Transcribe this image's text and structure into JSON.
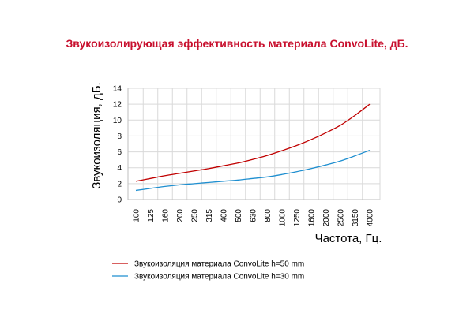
{
  "chart_data": {
    "type": "line",
    "title": "Звукоизолирующая эффективность материала ConvoLite, дБ.",
    "xlabel": "Частота, Гц.",
    "ylabel": "Звукоизоляция, дБ.",
    "categories": [
      "100",
      "125",
      "160",
      "200",
      "250",
      "315",
      "400",
      "500",
      "630",
      "800",
      "1000",
      "1250",
      "1600",
      "2000",
      "2500",
      "3150",
      "4000"
    ],
    "ylim": [
      0,
      14
    ],
    "yticks": [
      0,
      2,
      4,
      6,
      8,
      10,
      12,
      14
    ],
    "grid": true,
    "legend_position": "bottom",
    "series": [
      {
        "name": "Звукоизоляция материала ConvoLite h=50 mm",
        "color": "#c00000",
        "values": [
          2.3,
          2.65,
          3.0,
          3.3,
          3.6,
          3.9,
          4.25,
          4.6,
          5.05,
          5.55,
          6.15,
          6.8,
          7.55,
          8.4,
          9.35,
          10.6,
          12.0
        ]
      },
      {
        "name": "Звукоизоляция материала ConvoLite h=30 mm",
        "color": "#1f8fd0",
        "values": [
          1.15,
          1.4,
          1.65,
          1.85,
          2.0,
          2.15,
          2.3,
          2.45,
          2.65,
          2.85,
          3.15,
          3.5,
          3.9,
          4.35,
          4.85,
          5.5,
          6.2
        ]
      }
    ]
  }
}
